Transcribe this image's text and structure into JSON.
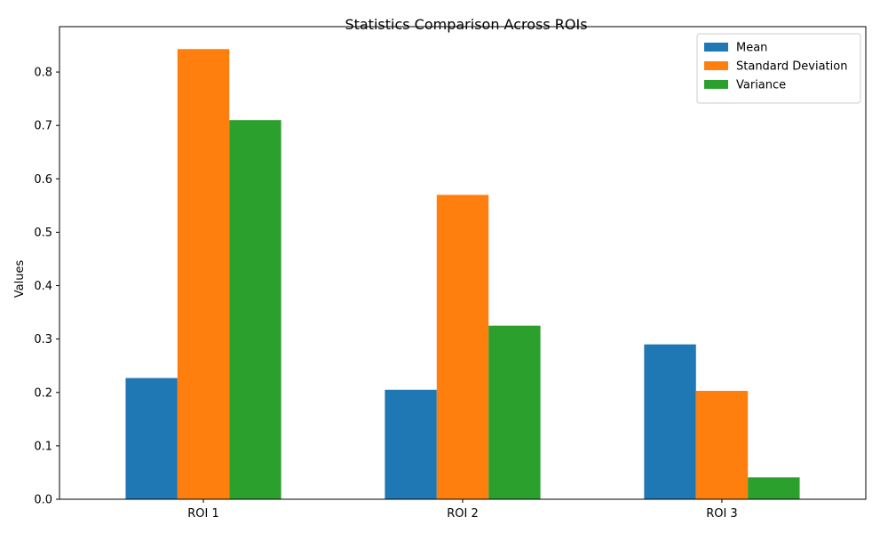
{
  "chart_data": {
    "type": "bar",
    "title": "Statistics Comparison Across ROIs",
    "xlabel": "",
    "ylabel": "Values",
    "categories": [
      "ROI 1",
      "ROI 2",
      "ROI 3"
    ],
    "series": [
      {
        "name": "Mean",
        "color": "#1f77b4",
        "values": [
          0.227,
          0.205,
          0.29
        ]
      },
      {
        "name": "Standard Deviation",
        "color": "#ff7f0e",
        "values": [
          0.843,
          0.57,
          0.203
        ]
      },
      {
        "name": "Variance",
        "color": "#2ca02c",
        "values": [
          0.71,
          0.325,
          0.041
        ]
      }
    ],
    "ylim": [
      0,
      0.885
    ],
    "yticks": [
      0.0,
      0.1,
      0.2,
      0.3,
      0.4,
      0.5,
      0.6,
      0.7,
      0.8
    ],
    "ytick_labels": [
      "0.0",
      "0.1",
      "0.2",
      "0.3",
      "0.4",
      "0.5",
      "0.6",
      "0.7",
      "0.8"
    ],
    "grid": false,
    "legend_position": "top-right"
  }
}
